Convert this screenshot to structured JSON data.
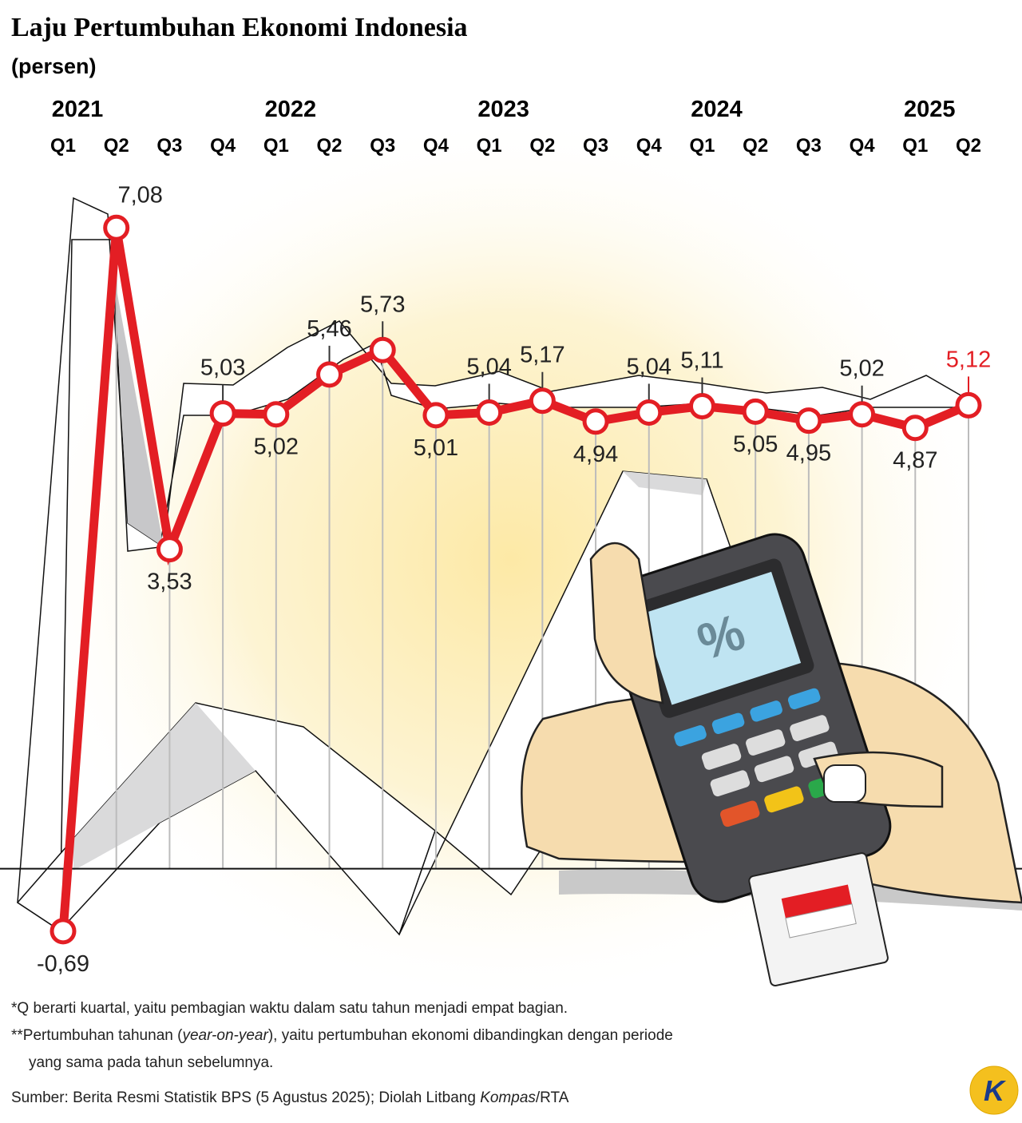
{
  "chart_data": {
    "type": "line",
    "title": "Laju Pertumbuhan Ekonomi Indonesia",
    "subtitle": "(persen)",
    "years": [
      "2021",
      "2022",
      "2023",
      "2024",
      "2025"
    ],
    "categories": [
      "Q1",
      "Q2",
      "Q3",
      "Q4",
      "Q1",
      "Q2",
      "Q3",
      "Q4",
      "Q1",
      "Q2",
      "Q3",
      "Q4",
      "Q1",
      "Q2",
      "Q3",
      "Q4",
      "Q1",
      "Q2"
    ],
    "series": [
      {
        "name": "Pertumbuhan ekonomi",
        "color": "#e31e24",
        "values": [
          -0.69,
          7.08,
          3.53,
          5.03,
          5.02,
          5.46,
          5.73,
          5.01,
          5.04,
          5.17,
          4.94,
          5.04,
          5.11,
          5.05,
          4.95,
          5.02,
          4.87,
          5.12
        ],
        "value_labels": [
          "-0,69",
          "7,08",
          "3,53",
          "5,03",
          "5,02",
          "5,46",
          "5,73",
          "5,01",
          "5,04",
          "5,17",
          "4,94",
          "5,04",
          "5,11",
          "5,05",
          "4,95",
          "5,02",
          "4,87",
          "5,12"
        ]
      }
    ],
    "ylim": [
      -1,
      8
    ],
    "notes": [
      [
        "*Q berarti kuartal, yaitu pembagian waktu dalam satu tahun menjadi empat bagian."
      ],
      [
        "**Pertumbuhan tahunan (",
        "year-on-year",
        "), yaitu pertumbuhan ekonomi dibandingkan dengan periode"
      ],
      [
        "yang sama pada tahun sebelumnya."
      ]
    ],
    "source": [
      "Sumber: Berita Resmi Statistik BPS (5 Agustus 2025); Diolah Litbang ",
      "Kompas",
      "/RTA"
    ],
    "logo": "K"
  }
}
